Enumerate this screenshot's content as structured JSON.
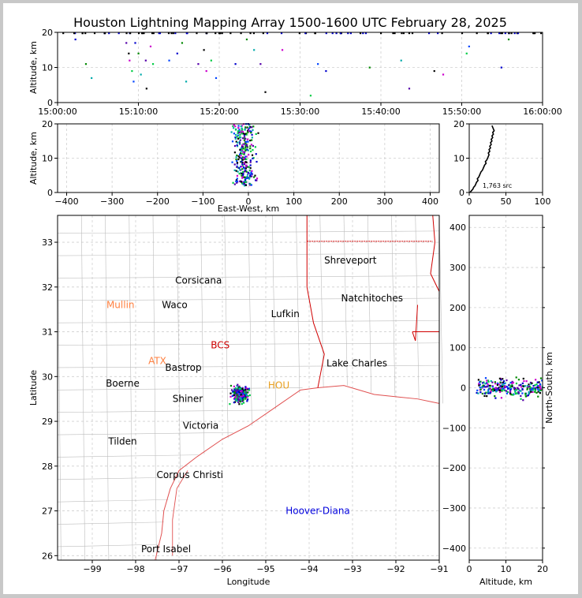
{
  "title": "Houston Lightning Mapping Array 1500-1600 UTC February 28, 2025",
  "colors": {
    "axis": "#000000",
    "grid": "#cfcfcf",
    "county": "#bdbdbd",
    "state": "#d00000",
    "coast": "#e05050",
    "source_palette": [
      "#0000cc",
      "#008800",
      "#00aaaa",
      "#5500aa",
      "#000000",
      "#cc00cc",
      "#00cc44",
      "#0044ff"
    ]
  },
  "chart_data": [
    {
      "id": "time_height",
      "type": "scatter",
      "ylabel": "Altitude, km",
      "ylim": [
        0,
        20
      ],
      "yticks": [
        "0",
        "10",
        "20"
      ],
      "xticks": [
        "15:00:00",
        "15:10:00",
        "15:20:00",
        "15:30:00",
        "15:40:00",
        "15:50:00",
        "16:00:00"
      ],
      "x_range_minutes": [
        0,
        60
      ],
      "points": [
        [
          2.2,
          18
        ],
        [
          3.5,
          11
        ],
        [
          4.2,
          7
        ],
        [
          8.5,
          17
        ],
        [
          8.8,
          14
        ],
        [
          8.9,
          12
        ],
        [
          9.2,
          9
        ],
        [
          9.4,
          6
        ],
        [
          9.6,
          17
        ],
        [
          10.0,
          14
        ],
        [
          10.3,
          8
        ],
        [
          10.9,
          12
        ],
        [
          11.0,
          4
        ],
        [
          11.5,
          16
        ],
        [
          11.8,
          11
        ],
        [
          13.8,
          12
        ],
        [
          14.8,
          14
        ],
        [
          15.4,
          17
        ],
        [
          15.9,
          6
        ],
        [
          17.4,
          11
        ],
        [
          18.1,
          15
        ],
        [
          18.4,
          9
        ],
        [
          19.0,
          12
        ],
        [
          19.6,
          7
        ],
        [
          22.0,
          11
        ],
        [
          23.4,
          18
        ],
        [
          24.3,
          15
        ],
        [
          25.1,
          11
        ],
        [
          25.7,
          3
        ],
        [
          27.8,
          15
        ],
        [
          31.3,
          2
        ],
        [
          32.2,
          11
        ],
        [
          33.2,
          9
        ],
        [
          38.6,
          10
        ],
        [
          42.5,
          12
        ],
        [
          43.5,
          4
        ],
        [
          46.6,
          9
        ],
        [
          47.7,
          8
        ],
        [
          50.6,
          14
        ],
        [
          50.9,
          16
        ],
        [
          54.9,
          10
        ],
        [
          55.8,
          18
        ]
      ]
    },
    {
      "id": "east_west_height",
      "type": "scatter",
      "xlabel": "East-West, km",
      "ylabel": "Altitude, km",
      "xlim": [
        -420,
        420
      ],
      "ylim": [
        0,
        20
      ],
      "xticks": [
        "−400",
        "−300",
        "−200",
        "−100",
        "0",
        "100",
        "200",
        "300",
        "400"
      ],
      "yticks": [
        "0",
        "10",
        "20"
      ],
      "cluster": {
        "center_km": -10,
        "spread_km": 40,
        "alt_range_km": [
          2,
          20
        ],
        "count": 280
      }
    },
    {
      "id": "altitude_histogram",
      "type": "line",
      "xlim": [
        0,
        100
      ],
      "ylim": [
        0,
        20
      ],
      "xticks": [
        "0",
        "50",
        "100"
      ],
      "yticks": [
        "0",
        "10",
        "20"
      ],
      "annotation": "1,763 src",
      "x": [
        1,
        3,
        5,
        6,
        8,
        9,
        10,
        12,
        11,
        13,
        14,
        15,
        16,
        18,
        19,
        20,
        21,
        23,
        22,
        24,
        25,
        26,
        27,
        26,
        28,
        27,
        29,
        28,
        30,
        29,
        31,
        30,
        32,
        31,
        33,
        32,
        34,
        33,
        32,
        31
      ],
      "y": [
        0,
        0.5,
        1,
        1.5,
        2,
        2.5,
        3,
        3.5,
        4,
        4.5,
        5,
        5.5,
        6,
        6.5,
        7,
        7.5,
        8,
        8.5,
        9,
        9.5,
        10,
        10.5,
        11,
        11.5,
        12,
        12.5,
        13,
        13.5,
        14,
        14.5,
        15,
        15.5,
        16,
        16.5,
        17,
        17.5,
        18,
        18.5,
        19,
        19.5
      ]
    },
    {
      "id": "plan_view_map",
      "type": "scatter",
      "xlabel": "Longitude",
      "ylabel": "Latitude",
      "xlim": [
        -99.8,
        -91
      ],
      "ylim": [
        25.9,
        33.6
      ],
      "xticks": [
        "−99",
        "−98",
        "−97",
        "−96",
        "−95",
        "−94",
        "−93",
        "−92",
        "−91"
      ],
      "yticks": [
        "26",
        "27",
        "28",
        "29",
        "30",
        "31",
        "32",
        "33"
      ],
      "cluster": {
        "center_lon": -95.6,
        "center_lat": 29.6,
        "spread_lon": 0.3,
        "spread_lat": 0.3,
        "count": 300
      },
      "cities": [
        {
          "name": "Shreveport",
          "lon": -93.05,
          "lat": 32.6,
          "color": "#000000"
        },
        {
          "name": "Corsicana",
          "lon": -96.55,
          "lat": 32.15,
          "color": "#000000"
        },
        {
          "name": "Mullin",
          "lon": -98.35,
          "lat": 31.6,
          "color": "#ff8040"
        },
        {
          "name": "Waco",
          "lon": -97.1,
          "lat": 31.6,
          "color": "#000000"
        },
        {
          "name": "Natchitoches",
          "lon": -92.55,
          "lat": 31.75,
          "color": "#000000"
        },
        {
          "name": "Lufkin",
          "lon": -94.55,
          "lat": 31.4,
          "color": "#000000"
        },
        {
          "name": "BCS",
          "lon": -96.05,
          "lat": 30.7,
          "color": "#cc0000"
        },
        {
          "name": "ATX",
          "lon": -97.5,
          "lat": 30.35,
          "color": "#ff8040"
        },
        {
          "name": "Lake Charles",
          "lon": -92.9,
          "lat": 30.3,
          "color": "#000000"
        },
        {
          "name": "Bastrop",
          "lon": -96.9,
          "lat": 30.2,
          "color": "#000000"
        },
        {
          "name": "Boerne",
          "lon": -98.3,
          "lat": 29.85,
          "color": "#000000"
        },
        {
          "name": "HOU",
          "lon": -94.7,
          "lat": 29.8,
          "color": "#e8a020"
        },
        {
          "name": "Shiner",
          "lon": -96.8,
          "lat": 29.5,
          "color": "#000000"
        },
        {
          "name": "Victoria",
          "lon": -96.5,
          "lat": 28.9,
          "color": "#000000"
        },
        {
          "name": "Tilden",
          "lon": -98.3,
          "lat": 28.55,
          "color": "#000000"
        },
        {
          "name": "Corpus Christi",
          "lon": -96.75,
          "lat": 27.8,
          "color": "#000000"
        },
        {
          "name": "Hoover-Diana",
          "lon": -93.8,
          "lat": 27.0,
          "color": "#0000dd"
        },
        {
          "name": "Port Isabel",
          "lon": -97.3,
          "lat": 26.15,
          "color": "#000000"
        }
      ]
    },
    {
      "id": "north_south_height",
      "type": "scatter",
      "xlabel": "Altitude, km",
      "ylabel": "North-South, km",
      "xlim": [
        0,
        20
      ],
      "ylim": [
        -430,
        430
      ],
      "xticks": [
        "0",
        "10",
        "20"
      ],
      "yticks": [
        "−400",
        "−300",
        "−200",
        "−100",
        "0",
        "100",
        "200",
        "300",
        "400"
      ],
      "cluster": {
        "center_km": 0,
        "spread_km": 35,
        "alt_range_km": [
          2,
          20
        ],
        "count": 260
      }
    }
  ]
}
